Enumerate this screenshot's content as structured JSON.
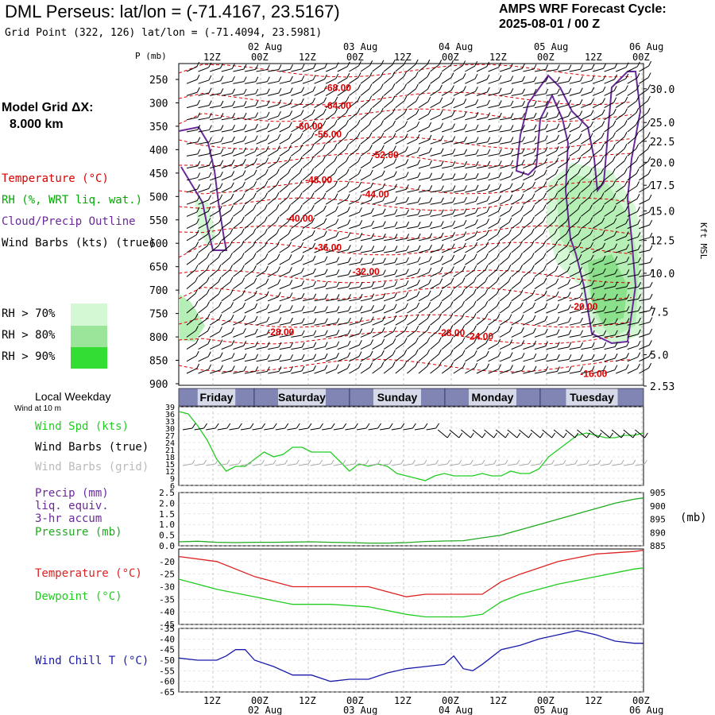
{
  "header": {
    "title": "DML Perseus:  lat/lon = (-71.4167, 23.5167)",
    "subtitle": "Grid Point (322, 126) lat/lon = (-71.4094, 23.5981)",
    "cycle_label": "AMPS WRF Forecast Cycle:",
    "cycle_value": "2025-08-01 / 00  Z"
  },
  "sidebar": {
    "model_grid_label": "Model Grid ΔX:",
    "model_grid_value": "8.000 km",
    "legend_temperature": "Temperature (°C)",
    "legend_rh": "RH (%, WRT liq. wat.)",
    "legend_cloud": "Cloud/Precip Outline",
    "legend_wind": "Wind Barbs (kts) (true)",
    "rh_keys": [
      {
        "label": "RH > 70%",
        "color": "#d4f7d4"
      },
      {
        "label": "RH > 80%",
        "color": "#9be59b"
      },
      {
        "label": "RH > 90%",
        "color": "#33dd33"
      }
    ],
    "local_weekday": "Local Weekday",
    "wind_at": "Wind at 10 m",
    "panel2_labels": [
      "Wind Spd (kts)",
      "Wind Barbs (true)",
      "Wind Barbs (grid)"
    ],
    "panel3_labels": [
      "Precip (mm)",
      "liq. equiv.",
      "3-hr accum",
      "Pressure (mb)"
    ],
    "panel4_labels": [
      "Temperature (°C)",
      "Dewpoint (°C)"
    ],
    "panel5_labels": [
      "Wind Chill T (°C)"
    ]
  },
  "colors": {
    "temperature": "#dd0000",
    "rh_text": "#00aa00",
    "cloud": "#6a2a9a",
    "wind": "#000000",
    "wind_grid": "#aaaaaa",
    "wind_speed": "#22cc22",
    "precip": "#6a2a9a",
    "pressure": "#22aa22",
    "temperature_line": "#dd2222",
    "dewpoint_line": "#22cc22",
    "windchill_line": "#1a1aaa"
  },
  "chart_data": [
    {
      "type": "heatmap",
      "name": "time-height cross section",
      "pressure_axis_title": "P (mb)",
      "right_axis_title": "Kft MSL",
      "time_ticks": [
        "12Z",
        "00Z",
        "12Z",
        "00Z",
        "12Z",
        "00Z",
        "12Z",
        "00Z",
        "12Z",
        "00Z"
      ],
      "date_labels": [
        {
          "label": "02 Aug",
          "tick": 1
        },
        {
          "label": "03 Aug",
          "tick": 3
        },
        {
          "label": "04 Aug",
          "tick": 5
        },
        {
          "label": "05 Aug",
          "tick": 7
        },
        {
          "label": "06 Aug",
          "tick": 9
        }
      ],
      "pressure_levels": [
        250,
        300,
        350,
        400,
        450,
        500,
        550,
        600,
        650,
        700,
        750,
        800,
        850,
        900
      ],
      "ylim": [
        250,
        900
      ],
      "height_ticks": [
        {
          "label": "30.0",
          "p": 270
        },
        {
          "label": "25.0",
          "p": 342
        },
        {
          "label": "22.5",
          "p": 382
        },
        {
          "label": "20.0",
          "p": 427
        },
        {
          "label": "17.5",
          "p": 476
        },
        {
          "label": "15.0",
          "p": 531
        },
        {
          "label": "12.5",
          "p": 594
        },
        {
          "label": "10.0",
          "p": 664
        },
        {
          "label": "7.5",
          "p": 746
        },
        {
          "label": "5.0",
          "p": 838
        },
        {
          "label": "2.53",
          "p": 905
        }
      ],
      "temperature_labels": [
        {
          "text": "-68.00",
          "t": 1.7,
          "p": 268
        },
        {
          "text": "-64.00",
          "t": 1.7,
          "p": 306
        },
        {
          "text": "-60.00",
          "t": 1.4,
          "p": 350
        },
        {
          "text": "-56.00",
          "t": 1.6,
          "p": 367
        },
        {
          "text": "-52.00",
          "t": 2.2,
          "p": 411
        },
        {
          "text": "-48.00",
          "t": 1.5,
          "p": 465
        },
        {
          "text": "-44.00",
          "t": 2.1,
          "p": 495
        },
        {
          "text": "-40.00",
          "t": 1.3,
          "p": 547
        },
        {
          "text": "-36.00",
          "t": 1.6,
          "p": 609
        },
        {
          "text": "-32.00",
          "t": 2.0,
          "p": 661
        },
        {
          "text": "-28.00",
          "t": 1.1,
          "p": 790
        },
        {
          "text": "-28.00",
          "t": 2.9,
          "p": 791
        },
        {
          "text": "-24.00",
          "t": 3.2,
          "p": 799
        },
        {
          "text": "-20.00",
          "t": 4.3,
          "p": 735
        },
        {
          "text": "-16.00",
          "t": 4.4,
          "p": 879
        }
      ],
      "weekdays": [
        "Friday",
        "Saturday",
        "Sunday",
        "Monday",
        "Tuesday"
      ]
    },
    {
      "type": "line",
      "name": "wind speed",
      "ylim": [
        6,
        39
      ],
      "y_ticks": [
        39,
        36,
        33,
        30,
        27,
        24,
        21,
        18,
        15,
        12,
        9,
        6
      ],
      "series": [
        {
          "name": "Wind Spd (kts)",
          "color": "#22cc22",
          "t": [
            0,
            0.1,
            0.2,
            0.3,
            0.4,
            0.5,
            0.6,
            0.7,
            0.8,
            0.9,
            1.0,
            1.1,
            1.2,
            1.3,
            1.4,
            1.5,
            1.6,
            1.7,
            1.8,
            1.9,
            2.0,
            2.1,
            2.2,
            2.3,
            2.4,
            2.5,
            2.6,
            2.7,
            2.8,
            2.9,
            3.0,
            3.1,
            3.2,
            3.3,
            3.4,
            3.5,
            3.6,
            3.7,
            3.8,
            3.9,
            4.0,
            4.1,
            4.2,
            4.3,
            4.4,
            4.5,
            4.6,
            4.7,
            4.8,
            4.9
          ],
          "values": [
            37,
            36,
            31,
            25,
            17,
            12,
            14,
            14,
            17,
            20,
            18,
            19,
            22,
            22,
            20,
            20,
            20,
            16,
            12,
            15,
            14,
            15,
            14,
            11,
            10,
            9,
            8,
            10,
            11,
            10,
            10,
            10,
            11,
            10,
            10,
            12,
            11,
            11,
            13,
            18,
            21,
            24,
            27,
            28,
            27,
            26,
            26,
            27,
            27,
            28
          ]
        }
      ]
    },
    {
      "type": "line",
      "name": "precip and pressure",
      "ylim": [
        0,
        2.5
      ],
      "y_ticks": [
        2.5,
        2.0,
        1.5,
        1.0,
        0.5,
        0.0
      ],
      "y2lim": [
        885,
        905
      ],
      "y2_ticks": [
        905,
        900,
        895,
        890,
        885
      ],
      "y2_label": "(mb)",
      "series": [
        {
          "name": "Pressure (mb)",
          "color": "#22aa22",
          "axis": "right",
          "t": [
            0,
            0.2,
            0.4,
            0.6,
            0.8,
            1.0,
            1.2,
            1.4,
            1.6,
            1.8,
            2.0,
            2.2,
            2.4,
            2.6,
            2.8,
            3.0,
            3.2,
            3.4,
            3.6,
            3.8,
            4.0,
            4.2,
            4.4,
            4.6,
            4.8,
            4.9
          ],
          "values": [
            886.5,
            886.7,
            886.3,
            886.2,
            886.3,
            886.3,
            886.4,
            886.5,
            886.3,
            886.2,
            886.0,
            886.0,
            886.2,
            886.6,
            886.8,
            886.9,
            888.0,
            889.0,
            891.0,
            893.0,
            895.0,
            897.0,
            899.0,
            901.0,
            902.5,
            903.0
          ]
        }
      ]
    },
    {
      "type": "line",
      "name": "temperature and dewpoint",
      "ylim": [
        -45,
        -15
      ],
      "y_ticks": [
        -20,
        -25,
        -30,
        -35,
        -40,
        -45
      ],
      "series": [
        {
          "name": "Temperature (°C)",
          "color": "#dd2222",
          "t": [
            0,
            0.4,
            0.8,
            1.2,
            1.6,
            2.0,
            2.4,
            2.6,
            2.8,
            3.0,
            3.2,
            3.4,
            3.6,
            4.0,
            4.4,
            4.8,
            4.9
          ],
          "values": [
            -18,
            -20,
            -26,
            -30,
            -30,
            -30,
            -34,
            -33,
            -33,
            -33,
            -33,
            -28,
            -25,
            -20,
            -17,
            -16,
            -15.5
          ]
        },
        {
          "name": "Dewpoint (°C)",
          "color": "#22cc22",
          "t": [
            0,
            0.4,
            0.8,
            1.2,
            1.6,
            2.0,
            2.4,
            2.6,
            2.8,
            3.0,
            3.2,
            3.4,
            3.6,
            4.0,
            4.4,
            4.8,
            4.9
          ],
          "values": [
            -27,
            -31,
            -34,
            -37,
            -37,
            -38,
            -41,
            -42,
            -42,
            -42,
            -41,
            -36,
            -33,
            -29,
            -26,
            -23,
            -22.5
          ]
        }
      ]
    },
    {
      "type": "line",
      "name": "wind chill",
      "ylim": [
        -65,
        -35
      ],
      "y_ticks": [
        -35,
        -40,
        -45,
        -50,
        -55,
        -60,
        -65
      ],
      "series": [
        {
          "name": "Wind Chill T (°C)",
          "color": "#1a1aaa",
          "t": [
            0,
            0.2,
            0.4,
            0.5,
            0.6,
            0.7,
            0.8,
            1.0,
            1.2,
            1.4,
            1.6,
            1.8,
            2.0,
            2.2,
            2.4,
            2.6,
            2.8,
            2.9,
            3.0,
            3.1,
            3.2,
            3.4,
            3.6,
            3.8,
            4.0,
            4.2,
            4.4,
            4.6,
            4.8,
            4.9
          ],
          "values": [
            -49,
            -50,
            -50,
            -48,
            -45,
            -45,
            -50,
            -53,
            -57,
            -57,
            -60,
            -59,
            -59,
            -56,
            -54,
            -53,
            -52,
            -48,
            -54,
            -55,
            -52,
            -45,
            -43,
            -40,
            -38,
            -36,
            -38,
            -41,
            -42,
            -42
          ]
        }
      ]
    }
  ]
}
